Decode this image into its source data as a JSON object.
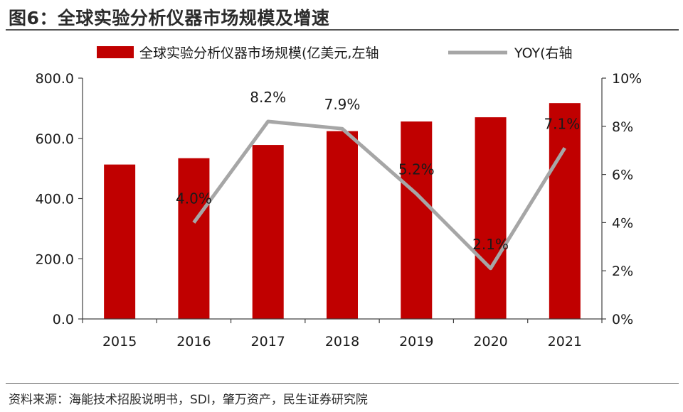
{
  "header": {
    "title": "图6：全球实验分析仪器市场规模及增速"
  },
  "footer": {
    "source": "资料来源：海能技术招股说明书，SDI，肇万资产，民生证券研究院"
  },
  "colors": {
    "bar": "#c00000",
    "line": "#a6a6a6",
    "axis": "#404040"
  },
  "chart_data": {
    "type": "bar+line",
    "categories": [
      "2015",
      "2016",
      "2017",
      "2018",
      "2019",
      "2020",
      "2021"
    ],
    "series": [
      {
        "name": "全球实验分析仪器市场规模(亿美元,左轴",
        "type": "bar",
        "axis": "left",
        "values": [
          513,
          534,
          578,
          624,
          656,
          670,
          717
        ]
      },
      {
        "name": "YOY(右轴",
        "type": "line",
        "axis": "right",
        "values": [
          null,
          4.0,
          8.2,
          7.9,
          5.2,
          2.1,
          7.1
        ],
        "data_labels": [
          "",
          "4.0%",
          "8.2%",
          "7.9%",
          "5.2%",
          "2.1%",
          "7.1%"
        ]
      }
    ],
    "left_axis": {
      "ylim": [
        0,
        800
      ],
      "ticks": [
        0,
        200,
        400,
        600,
        800
      ],
      "tick_labels": [
        "0.0",
        "200.0",
        "400.0",
        "600.0",
        "800.0"
      ]
    },
    "right_axis": {
      "ylim": [
        0,
        10
      ],
      "ticks": [
        0,
        2,
        4,
        6,
        8,
        10
      ],
      "tick_labels": [
        "0%",
        "2%",
        "4%",
        "6%",
        "8%",
        "10%"
      ]
    },
    "legend_position": "top",
    "grid": false
  }
}
